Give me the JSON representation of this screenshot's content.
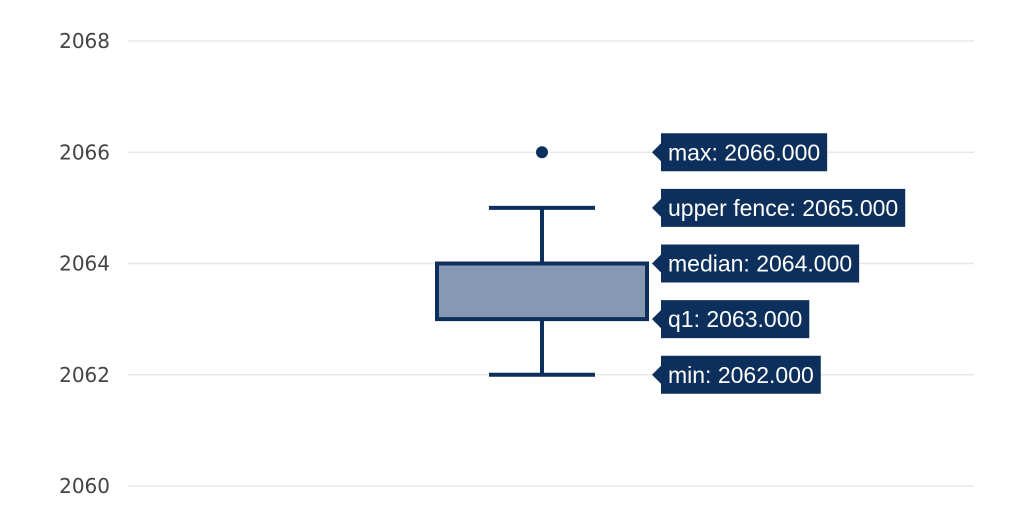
{
  "chart_data": {
    "type": "box",
    "title": "",
    "xlabel": "",
    "ylabel": "",
    "ylim": [
      2060,
      2068
    ],
    "yticks": [
      2060,
      2062,
      2064,
      2066,
      2068
    ],
    "grid": true,
    "series": [
      {
        "min": 2062,
        "q1": 2063,
        "median": 2064,
        "q3": 2064,
        "upper_fence": 2065,
        "max": 2066,
        "outliers": [
          2066
        ]
      }
    ],
    "hover_labels": [
      {
        "key": "max",
        "text": "max: 2066.000",
        "value": 2066
      },
      {
        "key": "upper_fence",
        "text": "upper fence: 2065.000",
        "value": 2065
      },
      {
        "key": "median",
        "text": "median: 2064.000",
        "value": 2064
      },
      {
        "key": "q1",
        "text": "q1: 2063.000",
        "value": 2063
      },
      {
        "key": "min",
        "text": "min: 2062.000",
        "value": 2062
      }
    ],
    "colors": {
      "line": "#0d2f5c",
      "fill": "#8799b2",
      "tooltip_bg": "#0d2f5c",
      "tooltip_text": "#ffffff",
      "grid": "#e8e8e8",
      "tick_text": "#444444"
    }
  }
}
